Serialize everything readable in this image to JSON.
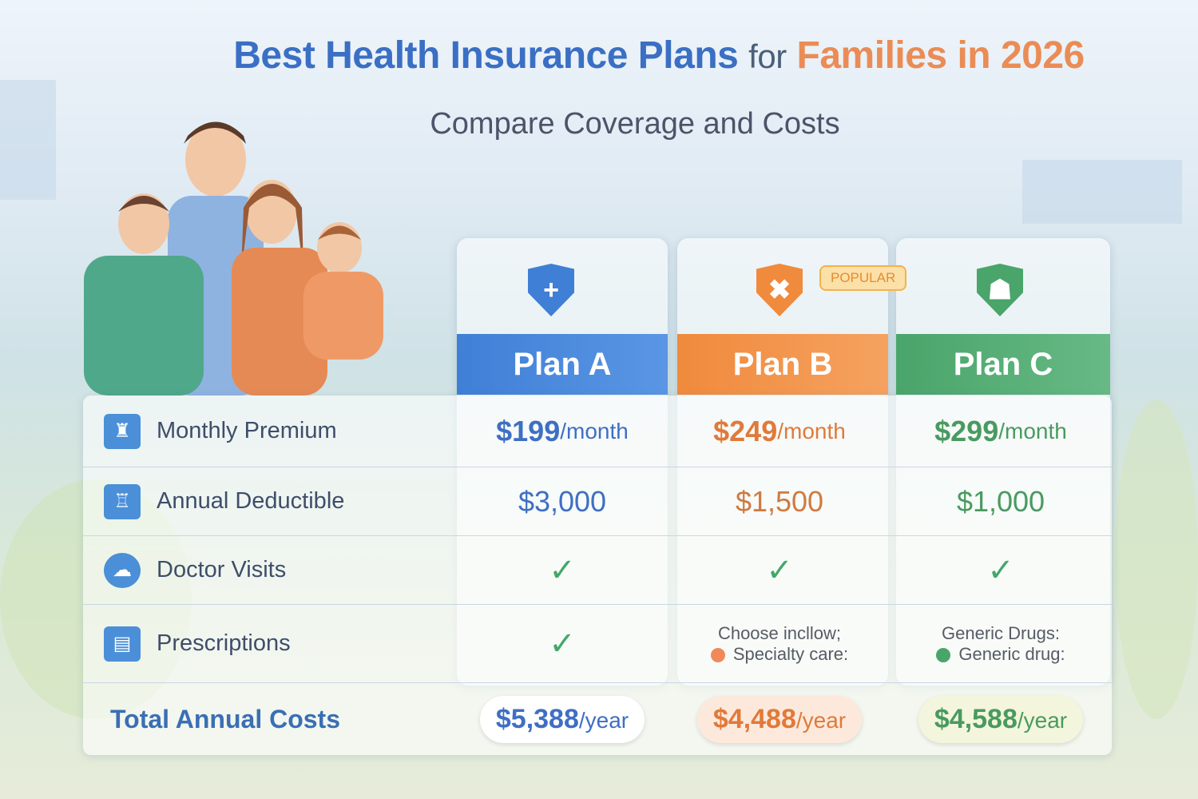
{
  "title": {
    "part1": "Best Health Insurance Plans",
    "part2": "for",
    "part3": "Families in 2026"
  },
  "subtitle": "Compare Coverage and Costs",
  "colors": {
    "plan_a": "#3f7fd6",
    "plan_b": "#f08a3c",
    "plan_c": "#4aa56a"
  },
  "plans": [
    {
      "name": "Plan A",
      "icon": "shield-plus-icon",
      "premium": "$199",
      "premium_unit": "/month",
      "deductible": "$3,000",
      "doctor_visits": "✓",
      "prescriptions": "✓",
      "total": "$5,388",
      "total_unit": "/year"
    },
    {
      "name": "Plan B",
      "icon": "shield-cross-icon",
      "badge": "POPULAR",
      "premium": "$249",
      "premium_unit": "/month",
      "deductible": "$1,500",
      "doctor_visits": "✓",
      "prescriptions_line1": "Choose incllow;",
      "prescriptions_line2": "Specialty care:",
      "total": "$4,488",
      "total_unit": "/year"
    },
    {
      "name": "Plan C",
      "icon": "shield-person-icon",
      "premium": "$299",
      "premium_unit": "/month",
      "deductible": "$1,000",
      "doctor_visits": "✓",
      "prescriptions_line1": "Generic Drugs:",
      "prescriptions_line2": "Generic drug:",
      "total": "$4,588",
      "total_unit": "/year"
    }
  ],
  "rows": {
    "premium": "Monthly Premium",
    "deductible": "Annual Deductible",
    "doctor": "Doctor Visits",
    "prescriptions": "Prescriptions",
    "total": "Total Annual Costs"
  }
}
